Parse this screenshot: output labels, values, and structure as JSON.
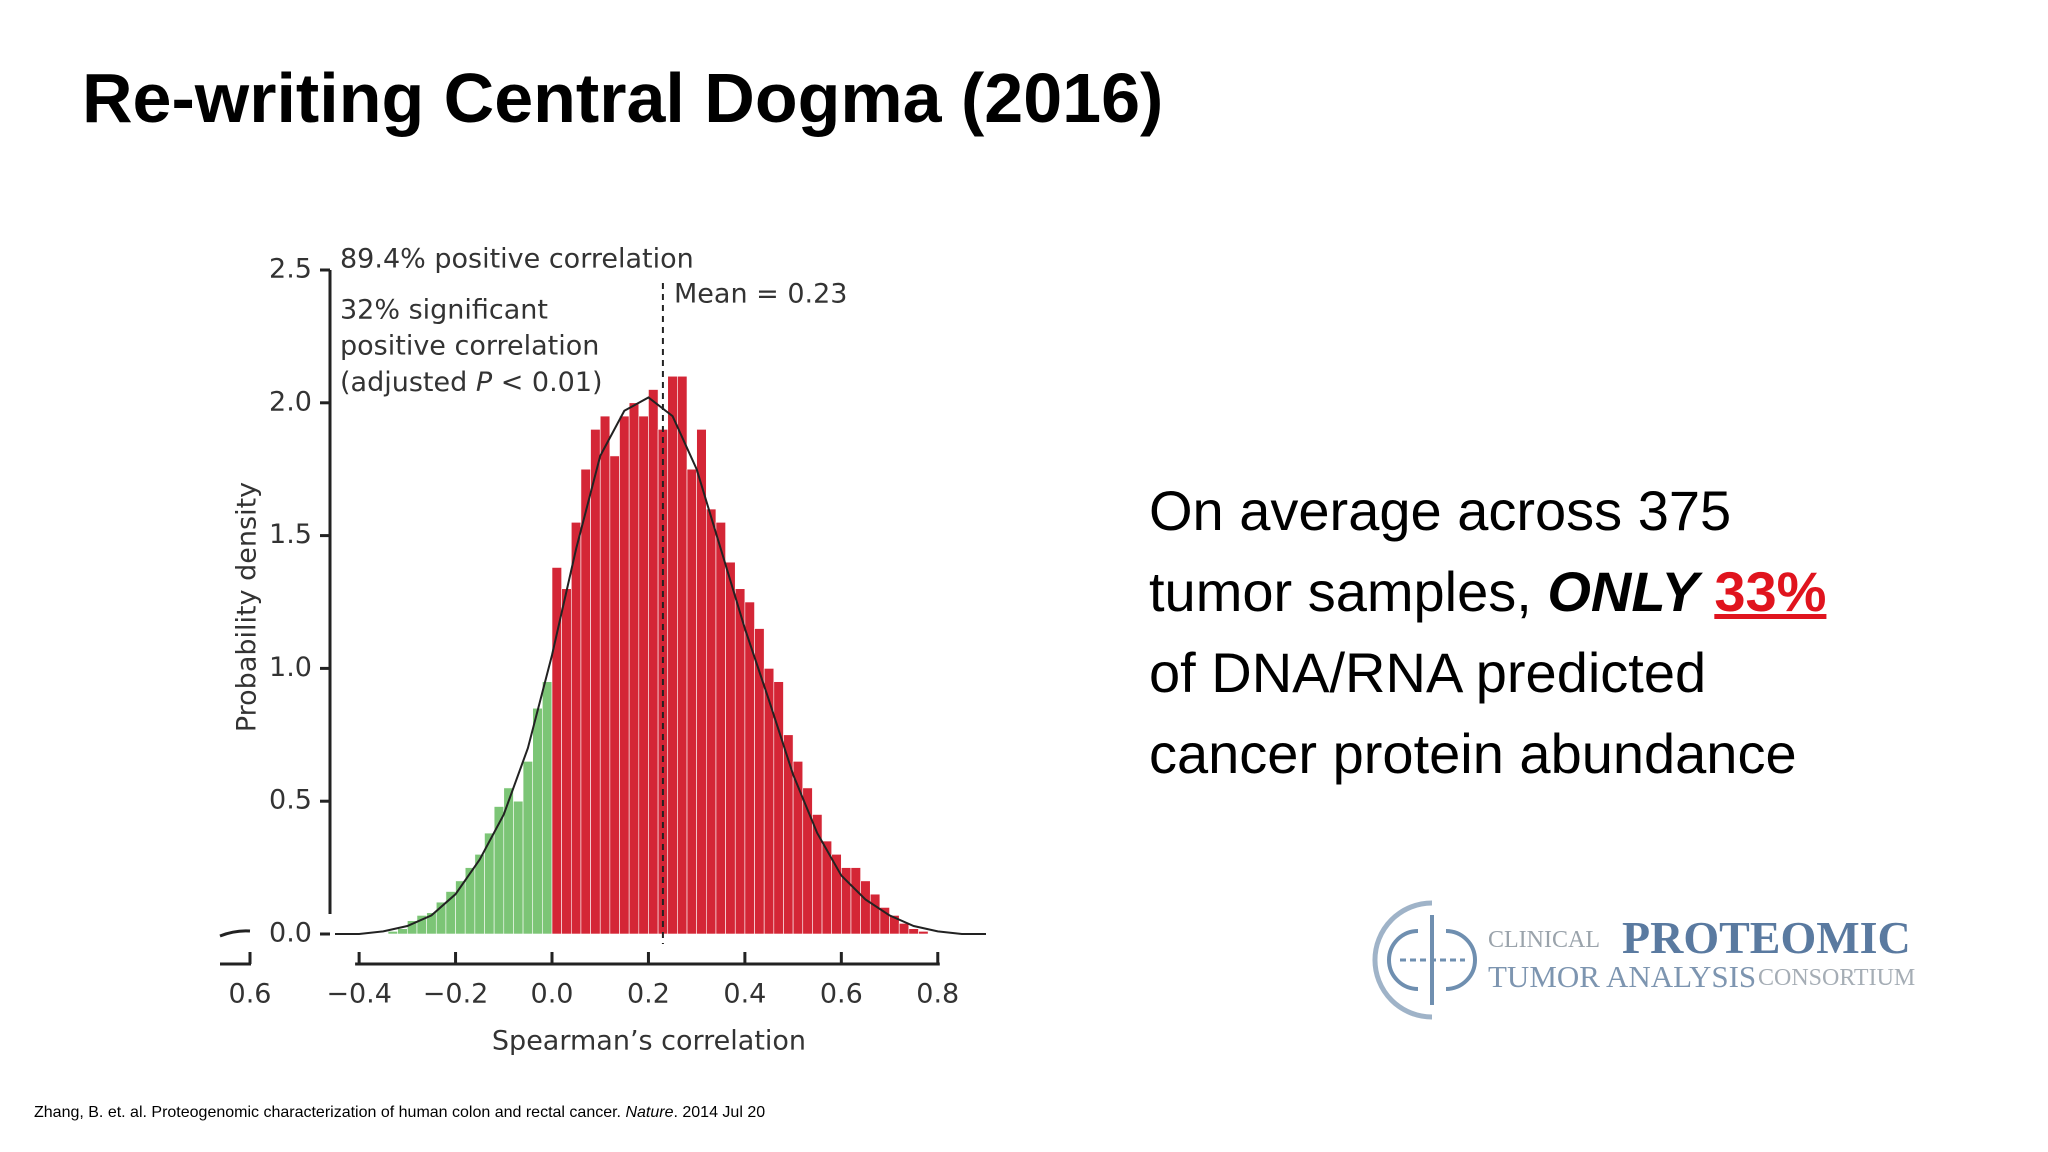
{
  "title": "Re-writing Central Dogma (2016)",
  "chart_data": {
    "type": "histogram",
    "xlabel": "Spearman’s correlation",
    "ylabel": "Probability density",
    "xlim": [
      -0.45,
      0.9
    ],
    "ylim": [
      0,
      2.5
    ],
    "xticks": [
      {
        "value": -0.4,
        "label": "−0.4"
      },
      {
        "value": -0.2,
        "label": "−0.2"
      },
      {
        "value": 0,
        "label": "0.0"
      },
      0.2,
      0.4,
      0.6,
      0.8
    ],
    "yticks": [
      {
        "value": 0,
        "label": "0.0"
      },
      0.5,
      {
        "value": 1,
        "label": "1.0"
      },
      1.5,
      {
        "value": 2,
        "label": "2.0"
      },
      2.5
    ],
    "x_break_label": "0.6",
    "series": [
      {
        "color": "#7cc576",
        "bins": [
          -0.34,
          -0.32,
          -0.3,
          -0.28,
          -0.26,
          -0.24,
          -0.22,
          -0.2,
          -0.18,
          -0.16,
          -0.14,
          -0.12,
          -0.1,
          -0.08,
          -0.06,
          -0.04,
          -0.02,
          0
        ],
        "values": [
          0.01,
          0.02,
          0.05,
          0.07,
          0.08,
          0.12,
          0.16,
          0.2,
          0.25,
          0.3,
          0.38,
          0.48,
          0.55,
          0.5,
          0.65,
          0.85,
          0.95
        ]
      },
      {
        "color": "#d42636",
        "bins": [
          0,
          0.02,
          0.04,
          0.06,
          0.08,
          0.1,
          0.12,
          0.14,
          0.16,
          0.18,
          0.2,
          0.22,
          0.24,
          0.26,
          0.28,
          0.3,
          0.32,
          0.34,
          0.36,
          0.38,
          0.4,
          0.42,
          0.44,
          0.46,
          0.48,
          0.5,
          0.52,
          0.54,
          0.56,
          0.58,
          0.6,
          0.62,
          0.64,
          0.66,
          0.68,
          0.7,
          0.72,
          0.74,
          0.76,
          0.78
        ],
        "values": [
          1.38,
          1.3,
          1.55,
          1.75,
          1.9,
          1.95,
          1.8,
          1.95,
          2.0,
          1.95,
          2.05,
          1.9,
          2.1,
          2.1,
          1.75,
          1.9,
          1.6,
          1.55,
          1.4,
          1.3,
          1.25,
          1.15,
          1.0,
          0.95,
          0.75,
          0.65,
          0.55,
          0.45,
          0.35,
          0.3,
          0.25,
          0.25,
          0.2,
          0.15,
          0.1,
          0.07,
          0.04,
          0.02,
          0.01
        ]
      }
    ],
    "curve": {
      "color": "#222222",
      "x": [
        -0.45,
        -0.4,
        -0.35,
        -0.3,
        -0.25,
        -0.2,
        -0.15,
        -0.1,
        -0.05,
        0,
        0.05,
        0.1,
        0.15,
        0.2,
        0.25,
        0.3,
        0.35,
        0.4,
        0.45,
        0.5,
        0.55,
        0.6,
        0.65,
        0.7,
        0.75,
        0.8,
        0.85,
        0.9
      ],
      "values": [
        0,
        0,
        0.01,
        0.03,
        0.07,
        0.15,
        0.28,
        0.45,
        0.7,
        1.05,
        1.45,
        1.8,
        1.97,
        2.02,
        1.95,
        1.75,
        1.45,
        1.15,
        0.88,
        0.6,
        0.38,
        0.22,
        0.13,
        0.07,
        0.03,
        0.01,
        0,
        0
      ]
    },
    "mean_line": 0.23,
    "mean_label": "Mean = 0.23",
    "annotation_top": "89.4% positive correlation",
    "annotation_lines": [
      "32% significant",
      "positive correlation"
    ],
    "adjusted_note": {
      "before": "(adjusted ",
      "italic": "P",
      "after": " < 0.01)"
    }
  },
  "body": {
    "lines": [
      "On average across 375",
      "tumor samples,",
      "of DNA/RNA predicted",
      "cancer protein abundance"
    ],
    "emphasis": "ONLY",
    "highlight": "33%"
  },
  "logo": {
    "clinical": "CLINICAL",
    "proteomic": "PROTEOMIC",
    "tumor": "TUMOR ANALYSIS",
    "consortium": "CONSORTIUM"
  },
  "citation": {
    "before": "Zhang, B. et. al. Proteogenomic characterization of human colon and rectal cancer.  ",
    "journal": "Nature",
    "after": ". 2014 Jul 20"
  }
}
